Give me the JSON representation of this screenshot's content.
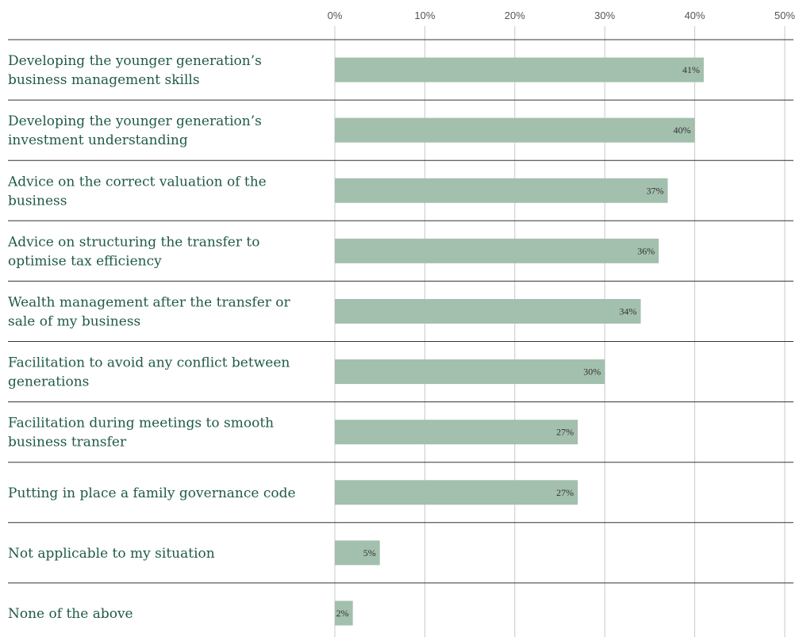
{
  "colors": {
    "bar": "#a3bfad",
    "label_text": "#1f5a46",
    "separator": "#333333",
    "gridline": "#c8c8c8"
  },
  "chart_data": {
    "type": "bar",
    "orientation": "horizontal",
    "title": "",
    "xlabel": "",
    "ylabel": "",
    "xlim": [
      0,
      50
    ],
    "x_ticks": [
      "0%",
      "10%",
      "20%",
      "30%",
      "40%",
      "50%"
    ],
    "x_tick_values": [
      0,
      10,
      20,
      30,
      40,
      50
    ],
    "grid": true,
    "legend": false,
    "categories": [
      [
        "Developing the younger generation’s",
        "business management skills"
      ],
      [
        "Developing the younger generation’s",
        "investment understanding"
      ],
      [
        "Advice on the correct valuation of the",
        "business"
      ],
      [
        "Advice on structuring the transfer to",
        "optimise tax efficiency"
      ],
      [
        "Wealth management after the transfer or",
        "sale of my business"
      ],
      [
        "Facilitation to avoid any conflict between",
        "generations"
      ],
      [
        "Facilitation during meetings to smooth",
        "business transfer"
      ],
      [
        "Putting in place a family governance code"
      ],
      [
        "Not applicable to my situation"
      ],
      [
        "None of the above"
      ]
    ],
    "values": [
      41,
      40,
      37,
      36,
      34,
      30,
      27,
      27,
      5,
      2
    ],
    "value_labels": [
      "41%",
      "40%",
      "37%",
      "36%",
      "34%",
      "30%",
      "27%",
      "27%",
      "5%",
      "2%"
    ]
  }
}
